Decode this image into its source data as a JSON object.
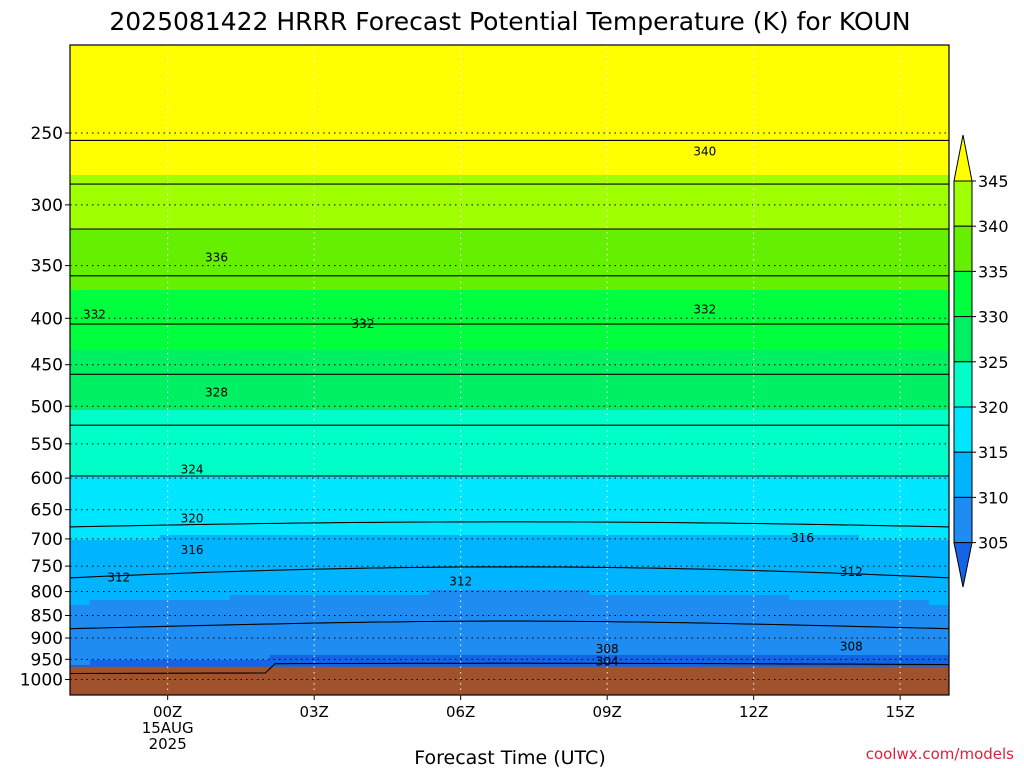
{
  "title": "2025081422 HRRR Forecast Potential Temperature (K) for KOUN",
  "credit": "coolwx.com/models",
  "chart_data": {
    "type": "heatmap",
    "title": "2025081422 HRRR Forecast Potential Temperature (K) for KOUN",
    "xlabel": "Forecast Time (UTC)",
    "ylabel": "",
    "x_axis": {
      "range_hours": [
        -2,
        16
      ],
      "ticks": [
        {
          "hour": 0,
          "label": "00Z",
          "sublabel": [
            "15AUG",
            "2025"
          ]
        },
        {
          "hour": 3,
          "label": "03Z"
        },
        {
          "hour": 6,
          "label": "06Z"
        },
        {
          "hour": 9,
          "label": "09Z"
        },
        {
          "hour": 12,
          "label": "12Z"
        },
        {
          "hour": 15,
          "label": "15Z"
        }
      ]
    },
    "y_axis": {
      "scale": "log-pressure",
      "reversed": true,
      "range_hpa": [
        1040,
        200
      ],
      "ticks": [
        250,
        300,
        350,
        400,
        450,
        500,
        550,
        600,
        650,
        700,
        750,
        800,
        850,
        900,
        950,
        1000
      ]
    },
    "ground_level_hpa": 968,
    "grid": true,
    "colorbar": {
      "levels": [
        305,
        310,
        315,
        320,
        325,
        330,
        335,
        340,
        345
      ],
      "colors": [
        "#1464e6",
        "#1e8cf0",
        "#00b4ff",
        "#00e6ff",
        "#00ffc8",
        "#00f064",
        "#00ff3c",
        "#64f000",
        "#a0ff00",
        "#ffff00"
      ],
      "extend": "both"
    },
    "contour_interval_k": 4,
    "contour_labels": [
      {
        "value": 340,
        "hour": 11.0,
        "hpa": 262
      },
      {
        "value": 336,
        "hour": 1.0,
        "hpa": 343
      },
      {
        "value": 332,
        "hour": -1.5,
        "hpa": 396
      },
      {
        "value": 332,
        "hour": 4.0,
        "hpa": 406
      },
      {
        "value": 332,
        "hour": 11.0,
        "hpa": 391
      },
      {
        "value": 328,
        "hour": 1.0,
        "hpa": 483
      },
      {
        "value": 324,
        "hour": 0.5,
        "hpa": 587
      },
      {
        "value": 320,
        "hour": 0.5,
        "hpa": 665
      },
      {
        "value": 316,
        "hour": 0.5,
        "hpa": 720
      },
      {
        "value": 316,
        "hour": 13.0,
        "hpa": 698
      },
      {
        "value": 312,
        "hour": -1.0,
        "hpa": 772
      },
      {
        "value": 312,
        "hour": 6.0,
        "hpa": 780
      },
      {
        "value": 312,
        "hour": 14.0,
        "hpa": 761
      },
      {
        "value": 308,
        "hour": 9.0,
        "hpa": 926
      },
      {
        "value": 308,
        "hour": 14.0,
        "hpa": 920
      },
      {
        "value": 304,
        "hour": 9.0,
        "hpa": 955
      }
    ]
  }
}
